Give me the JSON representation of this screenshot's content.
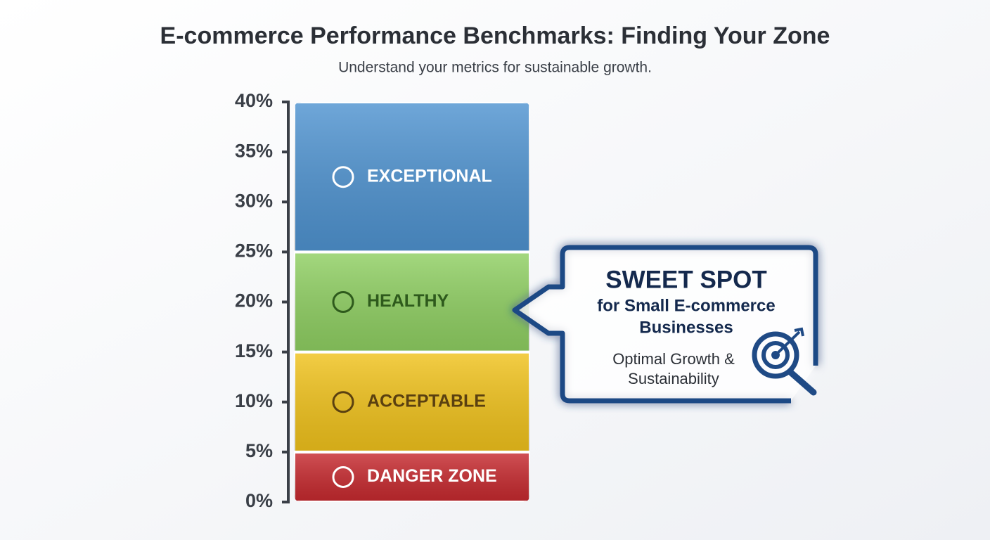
{
  "chart_data": {
    "type": "stacked_bar",
    "title": "E-commerce Performance Benchmarks: Finding Your Zone",
    "subtitle": "Understand your metrics for sustainable growth.",
    "series": [
      {
        "name": "DANGER ZONE",
        "color": "#c62a2f",
        "label_color": "#ffffff",
        "values": [
          5
        ]
      },
      {
        "name": "ACCEPTABLE",
        "color": "#f0c21c",
        "label_color": "#5a4010",
        "values": [
          10
        ]
      },
      {
        "name": "HEALTHY",
        "color": "#8fcf62",
        "label_color": "#2e5a1c",
        "values": [
          10
        ]
      },
      {
        "name": "EXCEPTIONAL",
        "color": "#4f93d0",
        "label_color": "#ffffff",
        "values": [
          15
        ]
      }
    ],
    "ylim": [
      0,
      40
    ],
    "yticks": [
      {
        "value": 0,
        "label": "0%"
      },
      {
        "value": 5,
        "label": "5%"
      },
      {
        "value": 10,
        "label": "10%"
      },
      {
        "value": 15,
        "label": "15%"
      },
      {
        "value": 20,
        "label": "20%"
      },
      {
        "value": 25,
        "label": "25%"
      },
      {
        "value": 30,
        "label": "30%"
      },
      {
        "value": 35,
        "label": "35%"
      },
      {
        "value": 40,
        "label": "40%"
      }
    ],
    "annotation": {
      "heading": "SWEET SPOT",
      "lines": [
        "for Small E-commerce",
        "Businesses"
      ],
      "note": [
        "Optimal Growth &",
        "Sustainability"
      ]
    }
  }
}
